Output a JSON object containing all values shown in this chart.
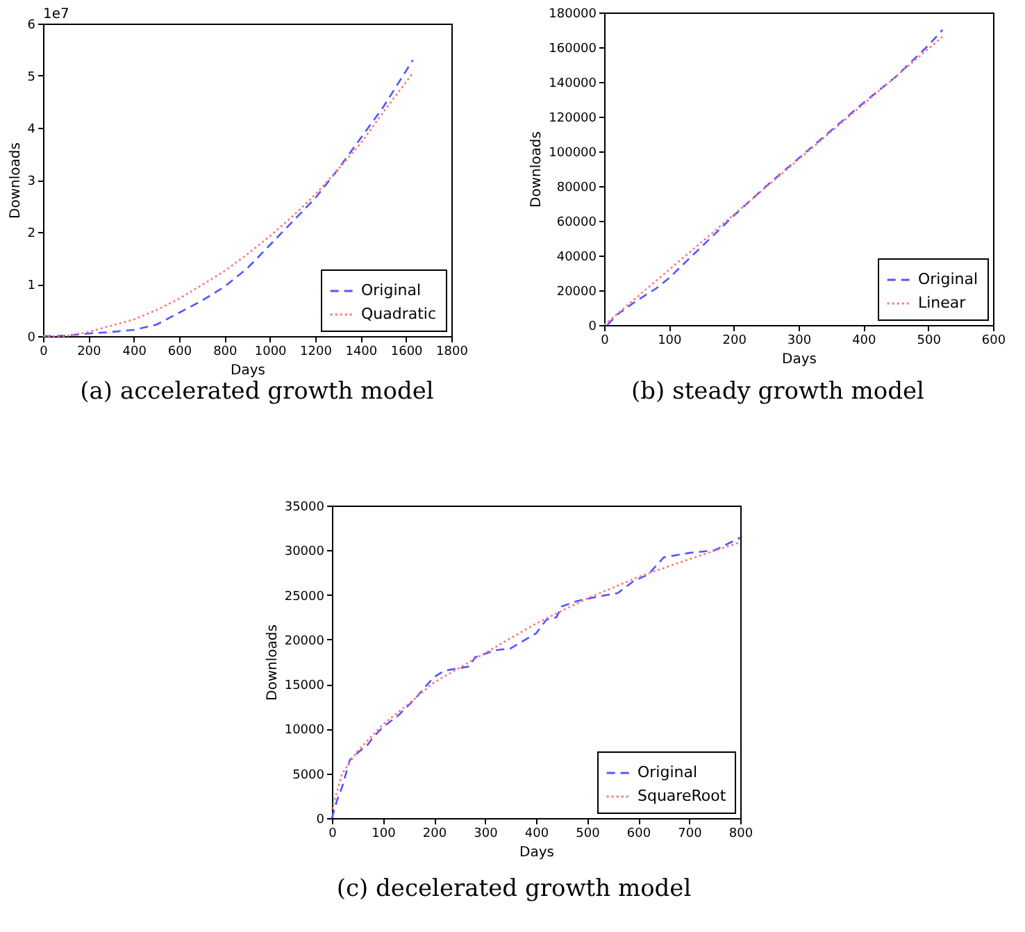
{
  "chart_data": [
    {
      "type": "line",
      "xlabel": "Days",
      "ylabel": "Downloads",
      "xlim": [
        0,
        1800
      ],
      "xticks": [
        0,
        200,
        400,
        600,
        800,
        1000,
        1200,
        1400,
        1600,
        1800
      ],
      "ylim": [
        0,
        6
      ],
      "yticks": [
        0,
        1,
        2,
        3,
        4,
        5,
        6
      ],
      "legend": "bottom right",
      "annotations": [
        "1e7",
        "(a) accelerated growth model"
      ],
      "series": [
        {
          "name": "Original",
          "color": "#5555ff",
          "line_style": "dashed",
          "x": [
            0,
            100,
            200,
            300,
            400,
            500,
            600,
            700,
            800,
            900,
            1000,
            1100,
            1200,
            1300,
            1400,
            1500,
            1630
          ],
          "values": [
            0,
            0.01,
            0.05,
            0.08,
            0.12,
            0.22,
            0.45,
            0.68,
            0.95,
            1.3,
            1.75,
            2.2,
            2.65,
            3.2,
            3.8,
            4.4,
            5.3
          ]
        },
        {
          "name": "Quadratic",
          "color": "#ff7777",
          "line_style": "dotted",
          "x": [
            0,
            100,
            200,
            300,
            400,
            500,
            600,
            700,
            800,
            900,
            1000,
            1100,
            1200,
            1300,
            1400,
            1500,
            1630
          ],
          "values": [
            0,
            0,
            0.08,
            0.2,
            0.32,
            0.5,
            0.72,
            0.98,
            1.25,
            1.57,
            1.92,
            2.3,
            2.72,
            3.2,
            3.7,
            4.3,
            5.05
          ]
        }
      ]
    },
    {
      "type": "line",
      "xlabel": "Days",
      "ylabel": "Downloads",
      "xlim": [
        0,
        600
      ],
      "xticks": [
        0,
        100,
        200,
        300,
        400,
        500,
        600
      ],
      "ylim": [
        0,
        180000
      ],
      "yticks": [
        0,
        20000,
        40000,
        60000,
        80000,
        100000,
        120000,
        140000,
        160000,
        180000
      ],
      "legend": "bottom right",
      "annotations": [
        "(b) steady growth model"
      ],
      "series": [
        {
          "name": "Original",
          "color": "#5555ff",
          "line_style": "dashed",
          "x": [
            5,
            20,
            50,
            80,
            100,
            150,
            200,
            250,
            300,
            350,
            400,
            450,
            500,
            522
          ],
          "values": [
            0,
            6000,
            14000,
            21000,
            27000,
            45000,
            63000,
            80000,
            96000,
            112000,
            128000,
            143000,
            161000,
            170000
          ]
        },
        {
          "name": "Linear",
          "color": "#ff7777",
          "line_style": "dotted",
          "x": [
            0,
            100,
            200,
            300,
            400,
            525
          ],
          "values": [
            0,
            31800,
            63600,
            95400,
            127200,
            167000
          ]
        }
      ]
    },
    {
      "type": "line",
      "xlabel": "Days",
      "ylabel": "Downloads",
      "xlim": [
        0,
        800
      ],
      "xticks": [
        0,
        100,
        200,
        300,
        400,
        500,
        600,
        700,
        800
      ],
      "ylim": [
        0,
        35000
      ],
      "yticks": [
        0,
        5000,
        10000,
        15000,
        20000,
        25000,
        30000,
        35000
      ],
      "legend": "bottom right",
      "annotations": [
        "(c) decelerated growth model"
      ],
      "series": [
        {
          "name": "Original",
          "color": "#5555ff",
          "line_style": "dashed",
          "x": [
            0,
            10,
            20,
            35,
            50,
            70,
            80,
            100,
            130,
            160,
            200,
            220,
            270,
            280,
            320,
            350,
            400,
            420,
            440,
            450,
            480,
            520,
            560,
            590,
            620,
            650,
            700,
            750,
            800
          ],
          "values": [
            0,
            2000,
            3500,
            6500,
            7300,
            8200,
            9000,
            10200,
            11500,
            13200,
            15800,
            16500,
            17000,
            18000,
            18800,
            19000,
            20700,
            22200,
            22500,
            23700,
            24300,
            24800,
            25200,
            26500,
            27300,
            29200,
            29700,
            30000,
            31400
          ]
        },
        {
          "name": "SquareRoot",
          "color": "#ff7777",
          "line_style": "dotted",
          "x": [
            0,
            20,
            50,
            100,
            150,
            200,
            300,
            400,
            500,
            600,
            700,
            800
          ],
          "values": [
            1000,
            5000,
            7500,
            10500,
            12800,
            15200,
            18500,
            21800,
            24600,
            27000,
            29000,
            30900
          ]
        }
      ]
    }
  ]
}
